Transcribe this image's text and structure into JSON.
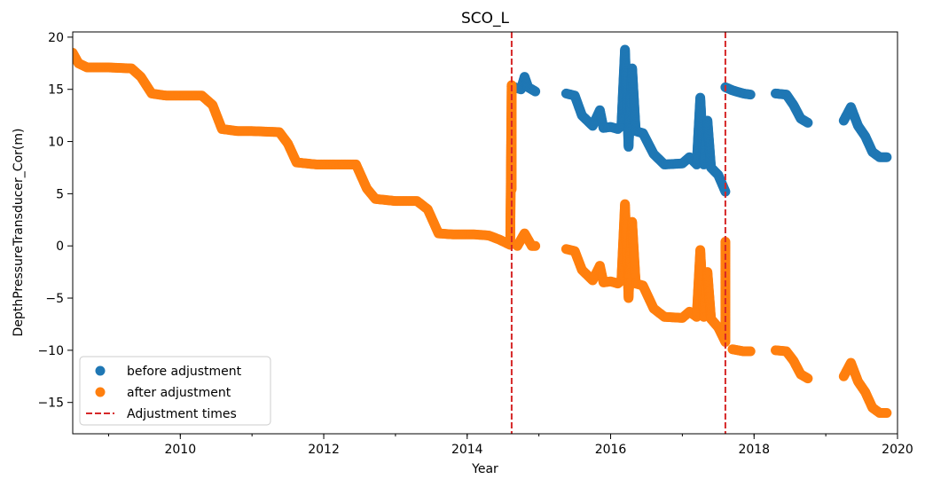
{
  "chart_data": {
    "type": "scatter",
    "title": "SCO_L",
    "xlabel": "Year",
    "ylabel": "DepthPressureTransducer_Cor(m)",
    "xlim": [
      2008.5,
      2020.0
    ],
    "ylim": [
      -18,
      20.5
    ],
    "x_ticks": [
      2010,
      2012,
      2014,
      2016,
      2018,
      2020
    ],
    "y_ticks": [
      -15,
      -10,
      -5,
      0,
      5,
      10,
      15,
      20
    ],
    "grid": false,
    "legend": "lower-left",
    "series": [
      {
        "name": "before adjustment",
        "color": "#1f77b4",
        "segments": [
          [
            [
              2014.62,
              15.3
            ],
            [
              2014.75,
              15.0
            ],
            [
              2014.8,
              16.2
            ],
            [
              2014.85,
              15.2
            ],
            [
              2014.95,
              14.8
            ]
          ],
          [
            [
              2015.38,
              14.6
            ],
            [
              2015.5,
              14.4
            ],
            [
              2015.6,
              12.5
            ],
            [
              2015.75,
              11.5
            ],
            [
              2015.85,
              13.0
            ],
            [
              2015.9,
              11.3
            ],
            [
              2016.0,
              11.4
            ],
            [
              2016.1,
              11.2
            ],
            [
              2016.15,
              11.5
            ],
            [
              2016.2,
              18.8
            ],
            [
              2016.25,
              9.5
            ],
            [
              2016.3,
              17.0
            ],
            [
              2016.35,
              11.0
            ],
            [
              2016.45,
              10.8
            ],
            [
              2016.6,
              8.8
            ],
            [
              2016.75,
              7.8
            ],
            [
              2017.0,
              7.9
            ],
            [
              2017.1,
              8.5
            ],
            [
              2017.2,
              7.8
            ],
            [
              2017.25,
              14.2
            ],
            [
              2017.3,
              7.8
            ],
            [
              2017.35,
              12.0
            ],
            [
              2017.4,
              7.5
            ],
            [
              2017.5,
              6.8
            ],
            [
              2017.6,
              5.2
            ]
          ],
          [
            [
              2017.6,
              15.2
            ],
            [
              2017.7,
              14.9
            ],
            [
              2017.85,
              14.6
            ],
            [
              2017.95,
              14.5
            ]
          ],
          [
            [
              2018.3,
              14.6
            ],
            [
              2018.45,
              14.5
            ],
            [
              2018.55,
              13.5
            ],
            [
              2018.65,
              12.2
            ],
            [
              2018.75,
              11.8
            ]
          ],
          [
            [
              2019.25,
              12.0
            ],
            [
              2019.35,
              13.3
            ],
            [
              2019.45,
              11.5
            ],
            [
              2019.55,
              10.5
            ],
            [
              2019.65,
              9.0
            ],
            [
              2019.75,
              8.5
            ],
            [
              2019.85,
              8.5
            ]
          ]
        ]
      },
      {
        "name": "after adjustment",
        "color": "#ff7f0e",
        "segments": [
          [
            [
              2008.5,
              18.5
            ],
            [
              2008.58,
              17.5
            ],
            [
              2008.7,
              17.1
            ],
            [
              2009.0,
              17.1
            ],
            [
              2009.32,
              17.0
            ],
            [
              2009.45,
              16.2
            ],
            [
              2009.6,
              14.6
            ],
            [
              2009.8,
              14.4
            ],
            [
              2010.0,
              14.4
            ],
            [
              2010.3,
              14.4
            ],
            [
              2010.45,
              13.5
            ],
            [
              2010.58,
              11.2
            ],
            [
              2010.8,
              11.0
            ],
            [
              2011.0,
              11.0
            ],
            [
              2011.38,
              10.9
            ],
            [
              2011.5,
              9.8
            ],
            [
              2011.62,
              8.0
            ],
            [
              2011.9,
              7.8
            ],
            [
              2012.2,
              7.8
            ],
            [
              2012.45,
              7.8
            ],
            [
              2012.6,
              5.5
            ],
            [
              2012.72,
              4.5
            ],
            [
              2013.0,
              4.3
            ],
            [
              2013.3,
              4.3
            ],
            [
              2013.45,
              3.5
            ],
            [
              2013.6,
              1.2
            ],
            [
              2013.8,
              1.1
            ],
            [
              2014.1,
              1.1
            ],
            [
              2014.3,
              1.0
            ],
            [
              2014.45,
              0.6
            ],
            [
              2014.6,
              0.1
            ],
            [
              2014.62,
              15.4
            ],
            [
              2014.62,
              5.4
            ]
          ],
          [
            [
              2014.7,
              0.0
            ],
            [
              2014.8,
              1.2
            ],
            [
              2014.9,
              0.0
            ],
            [
              2014.95,
              0.0
            ]
          ],
          [
            [
              2015.38,
              -0.3
            ],
            [
              2015.5,
              -0.5
            ],
            [
              2015.6,
              -2.3
            ],
            [
              2015.75,
              -3.3
            ],
            [
              2015.85,
              -1.9
            ],
            [
              2015.9,
              -3.5
            ],
            [
              2016.0,
              -3.4
            ],
            [
              2016.1,
              -3.6
            ],
            [
              2016.15,
              -3.3
            ],
            [
              2016.2,
              4.0
            ],
            [
              2016.25,
              -5.0
            ],
            [
              2016.3,
              2.3
            ],
            [
              2016.35,
              -3.6
            ],
            [
              2016.45,
              -3.8
            ],
            [
              2016.6,
              -6.0
            ],
            [
              2016.75,
              -6.8
            ],
            [
              2017.0,
              -6.9
            ],
            [
              2017.1,
              -6.3
            ],
            [
              2017.2,
              -6.8
            ],
            [
              2017.25,
              -0.4
            ],
            [
              2017.3,
              -6.8
            ],
            [
              2017.35,
              -2.5
            ],
            [
              2017.4,
              -7.0
            ],
            [
              2017.5,
              -7.8
            ],
            [
              2017.6,
              -9.2
            ],
            [
              2017.6,
              0.4
            ]
          ],
          [
            [
              2017.7,
              -9.9
            ],
            [
              2017.85,
              -10.1
            ],
            [
              2017.95,
              -10.1
            ]
          ],
          [
            [
              2018.3,
              -10.0
            ],
            [
              2018.45,
              -10.1
            ],
            [
              2018.55,
              -11.0
            ],
            [
              2018.65,
              -12.3
            ],
            [
              2018.75,
              -12.7
            ]
          ],
          [
            [
              2019.25,
              -12.5
            ],
            [
              2019.35,
              -11.2
            ],
            [
              2019.45,
              -13.0
            ],
            [
              2019.55,
              -14.0
            ],
            [
              2019.65,
              -15.5
            ],
            [
              2019.75,
              -16.0
            ],
            [
              2019.85,
              -16.0
            ]
          ]
        ]
      }
    ],
    "vlines": {
      "name": "Adjustment times",
      "color": "#d62728",
      "style": "dashed",
      "x": [
        2014.62,
        2017.6
      ]
    }
  }
}
